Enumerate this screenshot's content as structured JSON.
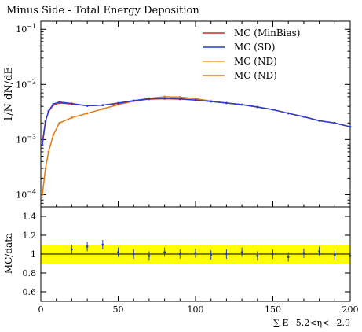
{
  "chart_data": [
    {
      "type": "line",
      "title": "Minus Side - Total Energy Deposition",
      "xlabel": "",
      "ylabel": "1/N dN/dE",
      "yscale": "log",
      "xlim": [
        0,
        200
      ],
      "ylim": [
        6e-05,
        0.14
      ],
      "y_tick_labels": [
        "10^-4",
        "10^-3",
        "10^-2",
        "10^-1"
      ],
      "legend_position": "top-right",
      "legend": [
        "MC (MinBias)",
        "MC (SD)",
        "MC (ND)",
        "MC (ND)"
      ],
      "series": [
        {
          "name": "MC (MinBias)",
          "color": "#d62728",
          "x": [
            1,
            3,
            5,
            8,
            12,
            20,
            30,
            40,
            50,
            60,
            70,
            80,
            90,
            100,
            110,
            120,
            130,
            140,
            150,
            160,
            170,
            180,
            190,
            200
          ],
          "y": [
            0.0009,
            0.0022,
            0.0032,
            0.0042,
            0.0046,
            0.0044,
            0.0041,
            0.0042,
            0.0045,
            0.005,
            0.0054,
            0.0055,
            0.0054,
            0.0052,
            0.0049,
            0.0046,
            0.0043,
            0.0039,
            0.0035,
            0.003,
            0.0026,
            0.0022,
            0.002,
            0.0017
          ]
        },
        {
          "name": "MC (SD)",
          "color": "#1f3fd6",
          "x": [
            1,
            3,
            5,
            8,
            12,
            20,
            30,
            40,
            50,
            60,
            70,
            80,
            90,
            100,
            110,
            120,
            130,
            140,
            150,
            160,
            170,
            180,
            190,
            200
          ],
          "y": [
            0.0008,
            0.0021,
            0.0033,
            0.0044,
            0.0048,
            0.0045,
            0.0041,
            0.0042,
            0.0046,
            0.0051,
            0.0055,
            0.0056,
            0.0055,
            0.0052,
            0.0049,
            0.0046,
            0.0043,
            0.0039,
            0.0035,
            0.003,
            0.0026,
            0.0022,
            0.002,
            0.0017
          ]
        },
        {
          "name": "MC (ND)",
          "color": "#f5a040",
          "x": [
            1,
            3,
            5,
            8,
            12,
            20,
            30,
            40,
            50,
            60,
            70,
            80,
            90,
            100,
            110,
            120,
            130,
            140,
            150,
            160,
            170,
            180,
            190,
            200
          ],
          "y": [
            0.0001,
            0.0003,
            0.0006,
            0.0012,
            0.002,
            0.0025,
            0.003,
            0.0036,
            0.0043,
            0.005,
            0.0056,
            0.006,
            0.0059,
            0.0055,
            0.005,
            0.0046,
            0.0043,
            0.0039,
            0.0035,
            0.003,
            0.0026,
            0.0022,
            0.002,
            0.0017
          ]
        },
        {
          "name": "MC (ND)",
          "color": "#e07b1a",
          "x": [
            1,
            3,
            5,
            8,
            12,
            20,
            30,
            40,
            50,
            60,
            70,
            80,
            90,
            100,
            110,
            120,
            130,
            140,
            150,
            160,
            170,
            180,
            190,
            200
          ],
          "y": [
            0.0001,
            0.0003,
            0.0006,
            0.0012,
            0.002,
            0.0025,
            0.003,
            0.0036,
            0.0043,
            0.005,
            0.0056,
            0.006,
            0.0059,
            0.0055,
            0.005,
            0.0046,
            0.0043,
            0.0039,
            0.0035,
            0.003,
            0.0026,
            0.0022,
            0.002,
            0.0017
          ]
        }
      ]
    },
    {
      "type": "scatter",
      "xlabel": "∑ E−5.2<η<−2.9",
      "ylabel": "MC/data",
      "xlim": [
        0,
        200
      ],
      "ylim": [
        0.5,
        1.5
      ],
      "x_ticks": [
        0,
        50,
        100,
        150,
        200
      ],
      "y_ticks": [
        0.6,
        0.8,
        1,
        1.2,
        1.4
      ],
      "grid": false,
      "band": {
        "low": 0.9,
        "high": 1.1,
        "color": "#ffff00"
      },
      "series": [
        {
          "name": "MC (SD)",
          "color": "#1f3fd6",
          "x": [
            20,
            30,
            40,
            50,
            60,
            70,
            80,
            90,
            100,
            110,
            120,
            130,
            140,
            150,
            160,
            170,
            180,
            190,
            200
          ],
          "y": [
            1.05,
            1.08,
            1.1,
            1.02,
            1.0,
            0.98,
            1.02,
            1.0,
            1.01,
            0.99,
            1.0,
            1.02,
            0.98,
            1.0,
            0.97,
            1.01,
            1.03,
            0.99,
            0.98
          ]
        }
      ]
    }
  ]
}
